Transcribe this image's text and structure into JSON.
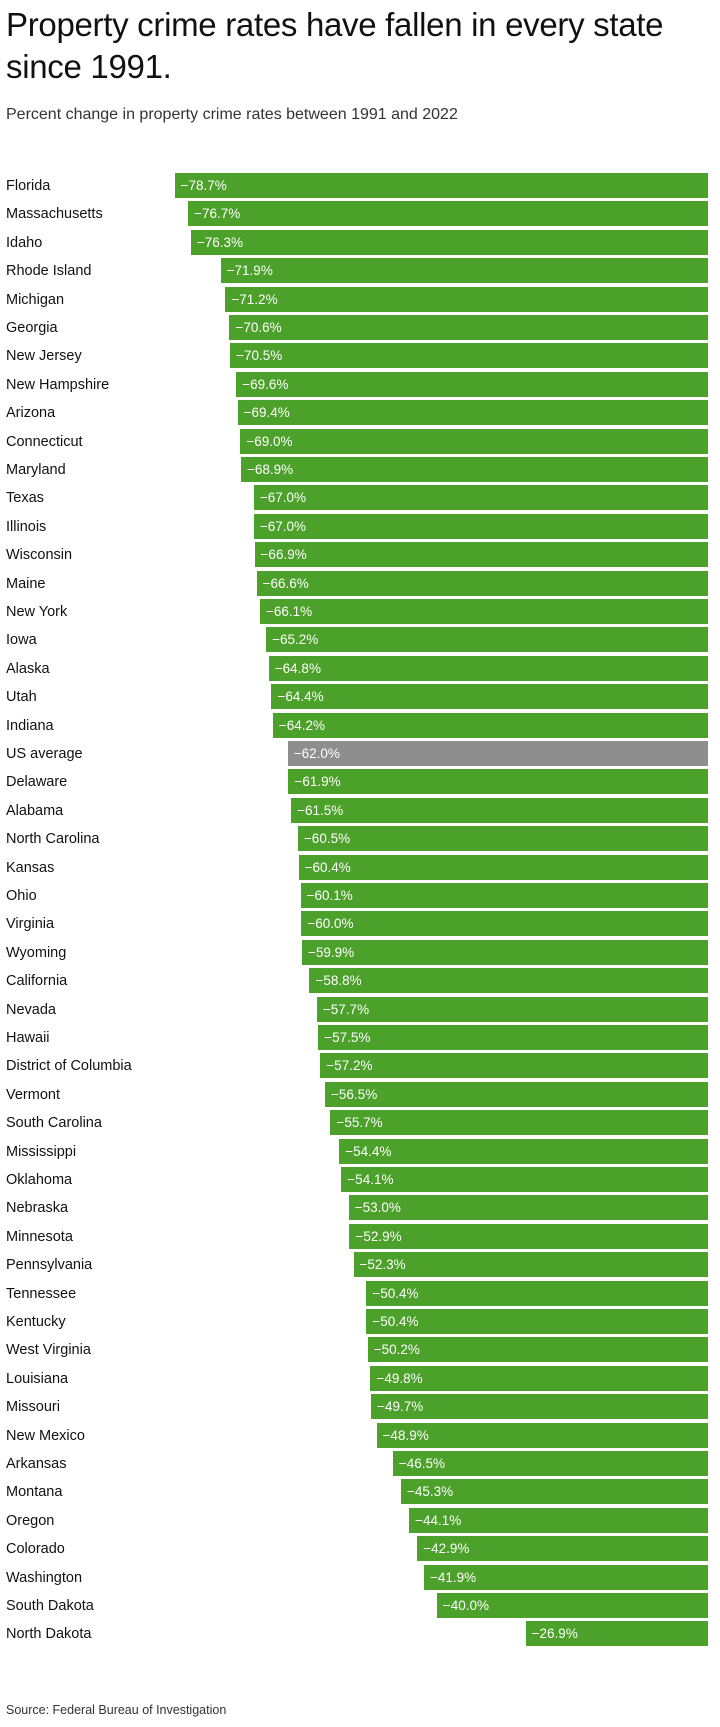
{
  "header": {
    "title": "Property crime rates have fallen in every state since 1991.",
    "subtitle": "Percent change in property crime rates between 1991 and 2022"
  },
  "footer": {
    "source": "Source: Federal Bureau of Investigation"
  },
  "colors": {
    "bar": "#4ca12b",
    "average_bar": "#8e8e8e",
    "value_text": "#ffffff"
  },
  "chart_data": {
    "type": "bar",
    "orientation": "horizontal",
    "title": "Property crime rates have fallen in every state since 1991.",
    "subtitle": "Percent change in property crime rates between 1991 and 2022",
    "value_unit": "%",
    "xlim": [
      -80,
      0
    ],
    "grid": false,
    "legend": "none",
    "highlight_category": "US average",
    "categories": [
      "Florida",
      "Massachusetts",
      "Idaho",
      "Rhode Island",
      "Michigan",
      "Georgia",
      "New Jersey",
      "New Hampshire",
      "Arizona",
      "Connecticut",
      "Maryland",
      "Texas",
      "Illinois",
      "Wisconsin",
      "Maine",
      "New York",
      "Iowa",
      "Alaska",
      "Utah",
      "Indiana",
      "US average",
      "Delaware",
      "Alabama",
      "North Carolina",
      "Kansas",
      "Ohio",
      "Virginia",
      "Wyoming",
      "California",
      "Nevada",
      "Hawaii",
      "District of Columbia",
      "Vermont",
      "South Carolina",
      "Mississippi",
      "Oklahoma",
      "Nebraska",
      "Minnesota",
      "Pennsylvania",
      "Tennessee",
      "Kentucky",
      "West Virginia",
      "Louisiana",
      "Missouri",
      "New Mexico",
      "Arkansas",
      "Montana",
      "Oregon",
      "Colorado",
      "Washington",
      "South Dakota",
      "North Dakota"
    ],
    "values": [
      -78.7,
      -76.7,
      -76.3,
      -71.9,
      -71.2,
      -70.6,
      -70.5,
      -69.6,
      -69.4,
      -69.0,
      -68.9,
      -67.0,
      -67.0,
      -66.9,
      -66.6,
      -66.1,
      -65.2,
      -64.8,
      -64.4,
      -64.2,
      -62.0,
      -61.9,
      -61.5,
      -60.5,
      -60.4,
      -60.1,
      -60.0,
      -59.9,
      -58.8,
      -57.7,
      -57.5,
      -57.2,
      -56.5,
      -55.7,
      -54.4,
      -54.1,
      -53.0,
      -52.9,
      -52.3,
      -50.4,
      -50.4,
      -50.2,
      -49.8,
      -49.7,
      -48.9,
      -46.5,
      -45.3,
      -44.1,
      -42.9,
      -41.9,
      -40.0,
      -26.9
    ],
    "value_labels": [
      "−78.7%",
      "−76.7%",
      "−76.3%",
      "−71.9%",
      "−71.2%",
      "−70.6%",
      "−70.5%",
      "−69.6%",
      "−69.4%",
      "−69.0%",
      "−68.9%",
      "−67.0%",
      "−67.0%",
      "−66.9%",
      "−66.6%",
      "−66.1%",
      "−65.2%",
      "−64.8%",
      "−64.4%",
      "−64.2%",
      "−62.0%",
      "−61.9%",
      "−61.5%",
      "−60.5%",
      "−60.4%",
      "−60.1%",
      "−60.0%",
      "−59.9%",
      "−58.8%",
      "−57.7%",
      "−57.5%",
      "−57.2%",
      "−56.5%",
      "−55.7%",
      "−54.4%",
      "−54.1%",
      "−53.0%",
      "−52.9%",
      "−52.3%",
      "−50.4%",
      "−50.4%",
      "−50.2%",
      "−49.8%",
      "−49.7%",
      "−48.9%",
      "−46.5%",
      "−45.3%",
      "−44.1%",
      "−42.9%",
      "−41.9%",
      "−40.0%",
      "−26.9%"
    ]
  }
}
